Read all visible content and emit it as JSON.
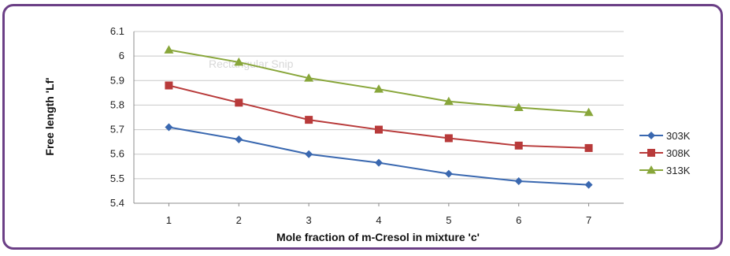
{
  "chart_data": {
    "type": "line",
    "title": "",
    "xlabel": "Mole fraction of m-Cresol in mixture 'c'",
    "ylabel": "Free length 'Lf'",
    "x": [
      1,
      2,
      3,
      4,
      5,
      6,
      7
    ],
    "xlim": [
      0.5,
      7.5
    ],
    "ylim": [
      5.4,
      6.1
    ],
    "yticks": [
      "5.4",
      "5.5",
      "5.6",
      "5.7",
      "5.8",
      "5.9",
      "6",
      "6.1"
    ],
    "xticks": [
      "1",
      "2",
      "3",
      "4",
      "5",
      "6",
      "7"
    ],
    "grid": "horizontal",
    "legend_position": "right",
    "series": [
      {
        "name": "303K",
        "marker": "diamond",
        "color": "#3a68b0",
        "values": [
          5.71,
          5.66,
          5.6,
          5.565,
          5.52,
          5.49,
          5.475
        ]
      },
      {
        "name": "308K",
        "marker": "square",
        "color": "#b83a3a",
        "values": [
          5.88,
          5.81,
          5.74,
          5.7,
          5.665,
          5.635,
          5.625
        ]
      },
      {
        "name": "313K",
        "marker": "triangle",
        "color": "#88a63a",
        "values": [
          6.025,
          5.975,
          5.91,
          5.865,
          5.815,
          5.79,
          5.77
        ]
      }
    ]
  },
  "overlay": {
    "watermark_text": "Rectangular Snip"
  },
  "colors": {
    "frame_border": "#6b3f86",
    "grid": "#c8c8c8"
  }
}
